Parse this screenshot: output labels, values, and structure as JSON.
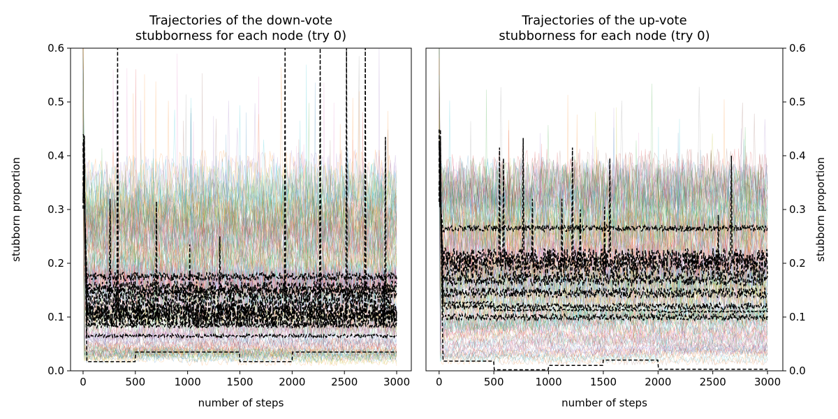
{
  "chart_data": [
    {
      "type": "line",
      "title": "Trajectories of the down-vote\nstubborness for each node (try 0)",
      "xlabel": "number of steps",
      "ylabel": "stubborn proportion",
      "xlim": [
        -120,
        3140
      ],
      "ylim": [
        0.0,
        0.6
      ],
      "xticks": [
        0,
        500,
        1000,
        1500,
        2000,
        2500,
        3000
      ],
      "yticks": [
        0.0,
        0.1,
        0.2,
        0.3,
        0.4,
        0.5,
        0.6
      ],
      "ytick_side": "left",
      "grid": false,
      "background_band": {
        "node_count": "many",
        "range": [
          0.0,
          0.4
        ],
        "peak_ceiling": 0.6
      },
      "highlighted_series": [
        {
          "style": "black-dashed",
          "level": 0.175,
          "noise": 0.008,
          "spikes": []
        },
        {
          "style": "black-dashed",
          "level": 0.155,
          "noise": 0.012,
          "spikes": []
        },
        {
          "style": "black-dashed",
          "level": 0.145,
          "noise": 0.012,
          "spikes": [
            [
              1310,
              0.25
            ]
          ]
        },
        {
          "style": "black-dashed",
          "level": 0.125,
          "noise": 0.02,
          "spikes": [
            [
              260,
              0.32
            ],
            [
              700,
              0.315
            ],
            [
              2890,
              0.435
            ]
          ]
        },
        {
          "style": "black-dashed",
          "level": 0.105,
          "noise": 0.02,
          "spikes": [
            [
              1020,
              0.235
            ]
          ]
        },
        {
          "style": "black-dashed",
          "level": 0.1,
          "noise": 0.02,
          "spikes": [
            [
              330,
              0.6
            ],
            [
              1930,
              0.6
            ],
            [
              2270,
              0.6
            ],
            [
              2520,
              0.6
            ],
            [
              2700,
              0.6
            ]
          ]
        },
        {
          "style": "black-dashed",
          "level": 0.085,
          "noise": 0.005,
          "spikes": []
        },
        {
          "style": "black-dashed",
          "level": 0.065,
          "noise": 0.003,
          "spikes": []
        },
        {
          "style": "black-dashed",
          "steps": [
            [
              0,
              0.017
            ],
            [
              500,
              0.035
            ],
            [
              1500,
              0.017
            ],
            [
              2000,
              0.035
            ]
          ],
          "noise": 0.0,
          "spikes": []
        }
      ]
    },
    {
      "type": "line",
      "title": "Trajectories of the up-vote\nstubborness for each node (try 0)",
      "xlabel": "number of steps",
      "ylabel": "stubborn proportion",
      "xlim": [
        -120,
        3140
      ],
      "ylim": [
        0.0,
        0.6
      ],
      "xticks": [
        0,
        500,
        1000,
        1500,
        2000,
        2500,
        3000
      ],
      "yticks": [
        0.0,
        0.1,
        0.2,
        0.3,
        0.4,
        0.5,
        0.6
      ],
      "ytick_side": "right",
      "grid": false,
      "background_band": {
        "node_count": "many",
        "range": [
          0.0,
          0.4
        ],
        "peak_ceiling": 0.5
      },
      "highlighted_series": [
        {
          "style": "black-dashed",
          "level": 0.265,
          "noise": 0.006,
          "spikes": []
        },
        {
          "style": "black-dashed",
          "level": 0.21,
          "noise": 0.018,
          "spikes": [
            [
              550,
              0.415
            ],
            [
              770,
              0.433
            ],
            [
              1220,
              0.415
            ],
            [
              1560,
              0.395
            ],
            [
              2670,
              0.4
            ]
          ]
        },
        {
          "style": "black-dashed",
          "level": 0.195,
          "noise": 0.02,
          "spikes": [
            [
              590,
              0.395
            ],
            [
              850,
              0.32
            ],
            [
              1120,
              0.32
            ],
            [
              1290,
              0.3
            ]
          ]
        },
        {
          "style": "black-dashed",
          "level": 0.17,
          "noise": 0.012,
          "spikes": [
            [
              1510,
              0.305
            ],
            [
              2550,
              0.29
            ]
          ]
        },
        {
          "style": "black-dashed",
          "level": 0.145,
          "noise": 0.01,
          "spikes": []
        },
        {
          "style": "black-dashed",
          "level": 0.12,
          "noise": 0.006,
          "spikes": []
        },
        {
          "style": "black-dashed",
          "level": 0.1,
          "noise": 0.006,
          "spikes": []
        },
        {
          "style": "black-dashed",
          "steps": [
            [
              0,
              0.127
            ],
            [
              500,
              0.113
            ],
            [
              2000,
              0.11
            ]
          ],
          "noise": 0.002,
          "spikes": []
        },
        {
          "style": "black-dashed",
          "steps": [
            [
              0,
              0.018
            ],
            [
              500,
              0.002
            ],
            [
              1000,
              0.01
            ],
            [
              1500,
              0.02
            ],
            [
              2000,
              0.003
            ]
          ],
          "noise": 0.0,
          "spikes": []
        }
      ]
    }
  ]
}
